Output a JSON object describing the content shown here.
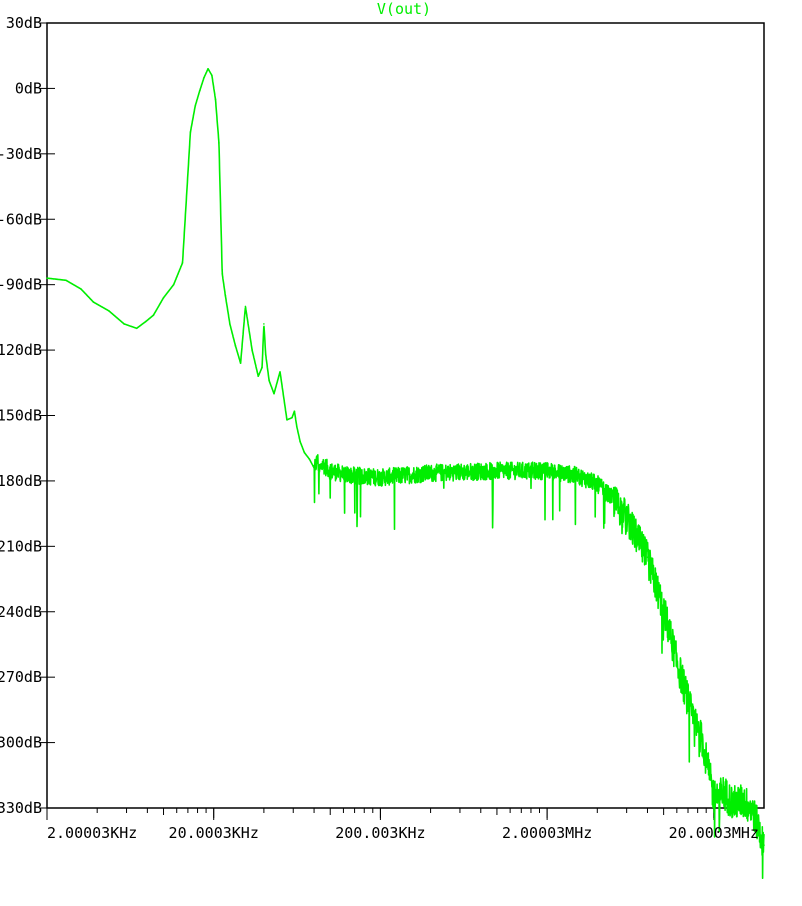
{
  "colors": {
    "trace": "#00ee00",
    "axis": "#000000",
    "background": "#ffffff"
  },
  "chart_data": {
    "type": "line",
    "title": "V(out)",
    "x_scale": "log",
    "xlim": [
      2000.03,
      40000000
    ],
    "ylim": [
      -330,
      30
    ],
    "grid": false,
    "yticks": [
      {
        "value": 30,
        "label": "30dB"
      },
      {
        "value": 0,
        "label": "0dB"
      },
      {
        "value": -30,
        "label": "-30dB"
      },
      {
        "value": -60,
        "label": "-60dB"
      },
      {
        "value": -90,
        "label": "-90dB"
      },
      {
        "value": -120,
        "label": "-120dB"
      },
      {
        "value": -150,
        "label": "-150dB"
      },
      {
        "value": -180,
        "label": "-180dB"
      },
      {
        "value": -210,
        "label": "-210dB"
      },
      {
        "value": -240,
        "label": "-240dB"
      },
      {
        "value": -270,
        "label": "-270dB"
      },
      {
        "value": -300,
        "label": "-300dB"
      },
      {
        "value": -330,
        "label": "-330dB"
      }
    ],
    "xticks": [
      {
        "value": 2000.03,
        "label": "2.00003KHz"
      },
      {
        "value": 20000.3,
        "label": "20.0003KHz"
      },
      {
        "value": 200003,
        "label": "200.003KHz"
      },
      {
        "value": 2000030,
        "label": "2.00003MHz"
      },
      {
        "value": 20000300,
        "label": "20.0003MHz"
      }
    ],
    "series": [
      {
        "name": "V(out)",
        "x": [
          2000,
          2600,
          3200,
          3800,
          4700,
          5800,
          6900,
          7800,
          8700,
          10000,
          11500,
          13000,
          14500,
          15500,
          16500,
          17500,
          18500,
          19500,
          20500,
          21500,
          22500,
          23500,
          25000,
          27000,
          29000,
          31000,
          34000,
          37000,
          39000,
          40000,
          41000,
          43000,
          46000,
          50000,
          55000,
          59000,
          61000,
          63000,
          66000,
          70000,
          75000,
          80000,
          84000,
          86000,
          90000,
          100000,
          130000,
          200000,
          400000,
          1000000,
          2000000,
          3000000,
          4000000,
          5000000,
          6000000,
          8000000,
          10000000,
          12000000,
          15000000,
          17000000,
          20000000,
          23000000,
          26000000,
          30000000,
          34000000,
          37000000,
          40000000
        ],
        "y": [
          -87,
          -88,
          -92,
          -98,
          -102,
          -108,
          -110,
          -107,
          -104,
          -96,
          -90,
          -80,
          -20,
          -8,
          -1,
          5,
          9,
          6,
          -5,
          -25,
          -85,
          -95,
          -108,
          -118,
          -126,
          -100,
          -120,
          -132,
          -128,
          -108,
          -122,
          -134,
          -140,
          -130,
          -152,
          -151,
          -148,
          -155,
          -162,
          -167,
          -170,
          -174,
          -170,
          -175,
          -172,
          -175,
          -177,
          -178,
          -176,
          -175,
          -175,
          -177,
          -181,
          -188,
          -196,
          -215,
          -238,
          -262,
          -288,
          -298,
          -324,
          -322,
          -327,
          -326,
          -330,
          -338,
          -347
        ]
      }
    ]
  }
}
